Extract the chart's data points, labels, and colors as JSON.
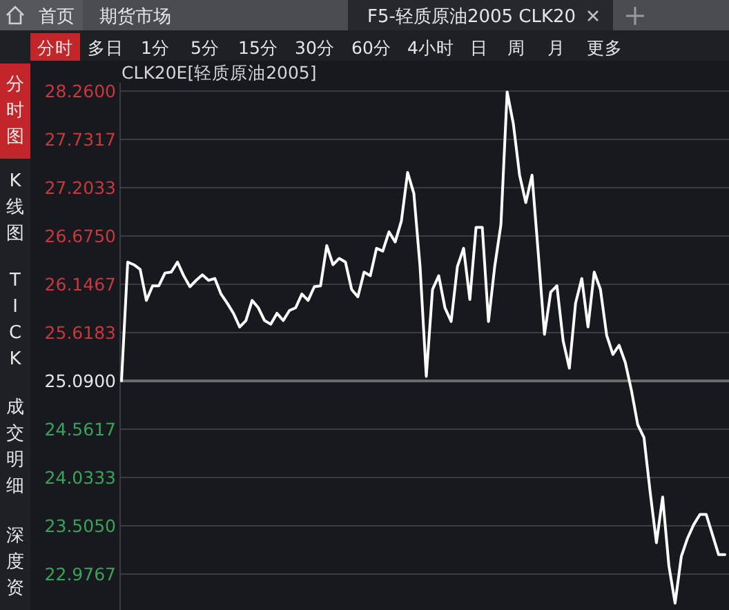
{
  "chart_data": {
    "type": "line",
    "title": "CLK20E[轻质原油2005]",
    "annotations": [
      "首页",
      "期货市场",
      "F5-轻质原油2005 CLK20",
      "分时",
      "多日",
      "1分",
      "5分",
      "15分",
      "30分",
      "60分",
      "4小时",
      "日",
      "周",
      "月",
      "更多",
      "分时图",
      "K线图",
      "TICK",
      "成交明细",
      "深度资"
    ],
    "categories": [
      null,
      null,
      null,
      null,
      null,
      null,
      null,
      null,
      null,
      null,
      null,
      null,
      null,
      null,
      null,
      null,
      null,
      null,
      null,
      null,
      null,
      null,
      null,
      null,
      null,
      null,
      null,
      null,
      null,
      null,
      null,
      null,
      null,
      null,
      null,
      null,
      null,
      null,
      null,
      null,
      null,
      null,
      null,
      null,
      null,
      null,
      null,
      null,
      null,
      null,
      null,
      null,
      null,
      null,
      null,
      null,
      null,
      null,
      null,
      null,
      null,
      null,
      null,
      null,
      null,
      null,
      null,
      null,
      null,
      null,
      null,
      null,
      null,
      null,
      null,
      null,
      null,
      null,
      null,
      null,
      null,
      null,
      null,
      null,
      null,
      null,
      null,
      null,
      null,
      null,
      null,
      null,
      null,
      null,
      null,
      null,
      null,
      null
    ],
    "series": [
      {
        "color": "#ffffff",
        "values": [
          25.09,
          26.39,
          26.36,
          26.31,
          25.97,
          26.13,
          26.13,
          26.27,
          26.28,
          26.39,
          26.24,
          26.12,
          26.19,
          26.25,
          26.19,
          26.21,
          26.04,
          25.94,
          25.83,
          25.68,
          25.75,
          25.97,
          25.89,
          25.75,
          25.71,
          25.83,
          25.75,
          25.86,
          25.89,
          26.04,
          25.97,
          26.12,
          26.13,
          26.57,
          26.36,
          26.43,
          26.39,
          26.09,
          26.01,
          26.28,
          26.24,
          26.54,
          26.51,
          26.72,
          26.61,
          26.84,
          27.37,
          27.14,
          26.34,
          25.14,
          26.09,
          26.24,
          25.89,
          25.74,
          26.34,
          26.54,
          25.98,
          26.77,
          26.77,
          25.74,
          26.34,
          26.8,
          28.25,
          27.9,
          27.34,
          27.04,
          27.34,
          26.49,
          25.6,
          26.06,
          26.13,
          25.53,
          25.23,
          25.94,
          26.21,
          25.68,
          26.28,
          26.09,
          25.59,
          25.38,
          25.48,
          25.29,
          24.98,
          24.61,
          24.47,
          23.87,
          23.32,
          23.82,
          23.07,
          22.66,
          23.17,
          23.37,
          23.52,
          23.63,
          23.63,
          23.41,
          23.19,
          23.19
        ]
      }
    ],
    "ylim": [
      22.6,
      28.35
    ],
    "yticks": [
      {
        "value": 28.26,
        "label": "28.2600"
      },
      {
        "value": 27.7317,
        "label": "27.7317"
      },
      {
        "value": 27.2033,
        "label": "27.2033"
      },
      {
        "value": 26.675,
        "label": "26.6750"
      },
      {
        "value": 26.1467,
        "label": "26.1467"
      },
      {
        "value": 25.6183,
        "label": "25.6183"
      },
      {
        "value": 25.09,
        "label": "25.0900"
      },
      {
        "value": 24.5617,
        "label": "24.5617"
      },
      {
        "value": 24.0333,
        "label": "24.0333"
      },
      {
        "value": 23.505,
        "label": "23.5050"
      },
      {
        "value": 22.9767,
        "label": "22.9767"
      }
    ],
    "ref_lines": [
      {
        "axis": "y",
        "value": 25.09,
        "color": "#6a6a6a"
      }
    ],
    "grid": "y",
    "tick_labels": "y"
  }
}
